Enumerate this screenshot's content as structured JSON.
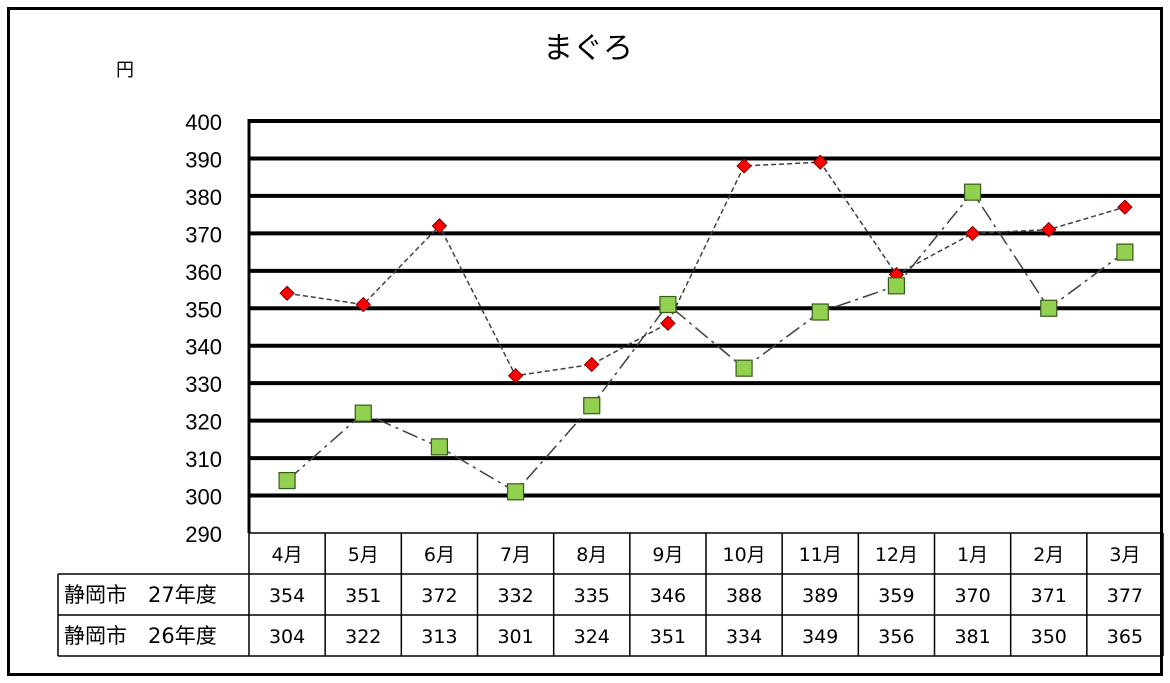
{
  "chart_data": {
    "type": "line",
    "title": "まぐろ",
    "ylabel": "円",
    "xlabel": "",
    "ylim": [
      290,
      400
    ],
    "yticks": [
      290,
      300,
      310,
      320,
      330,
      340,
      350,
      360,
      370,
      380,
      390,
      400
    ],
    "categories": [
      "4月",
      "5月",
      "6月",
      "7月",
      "8月",
      "9月",
      "10月",
      "11月",
      "12月",
      "1月",
      "2月",
      "3月"
    ],
    "grid": true,
    "legend": "data table below plot",
    "series": [
      {
        "name": "静岡市　27年度",
        "values": [
          354,
          351,
          372,
          332,
          335,
          346,
          388,
          389,
          359,
          370,
          371,
          377
        ],
        "marker": "diamond",
        "color": "#ff0000",
        "line_style": "dashed"
      },
      {
        "name": "静岡市　26年度",
        "values": [
          304,
          322,
          313,
          301,
          324,
          351,
          334,
          349,
          356,
          381,
          350,
          365
        ],
        "marker": "square",
        "color": "#92d050",
        "line_style": "dash-dot"
      }
    ]
  }
}
